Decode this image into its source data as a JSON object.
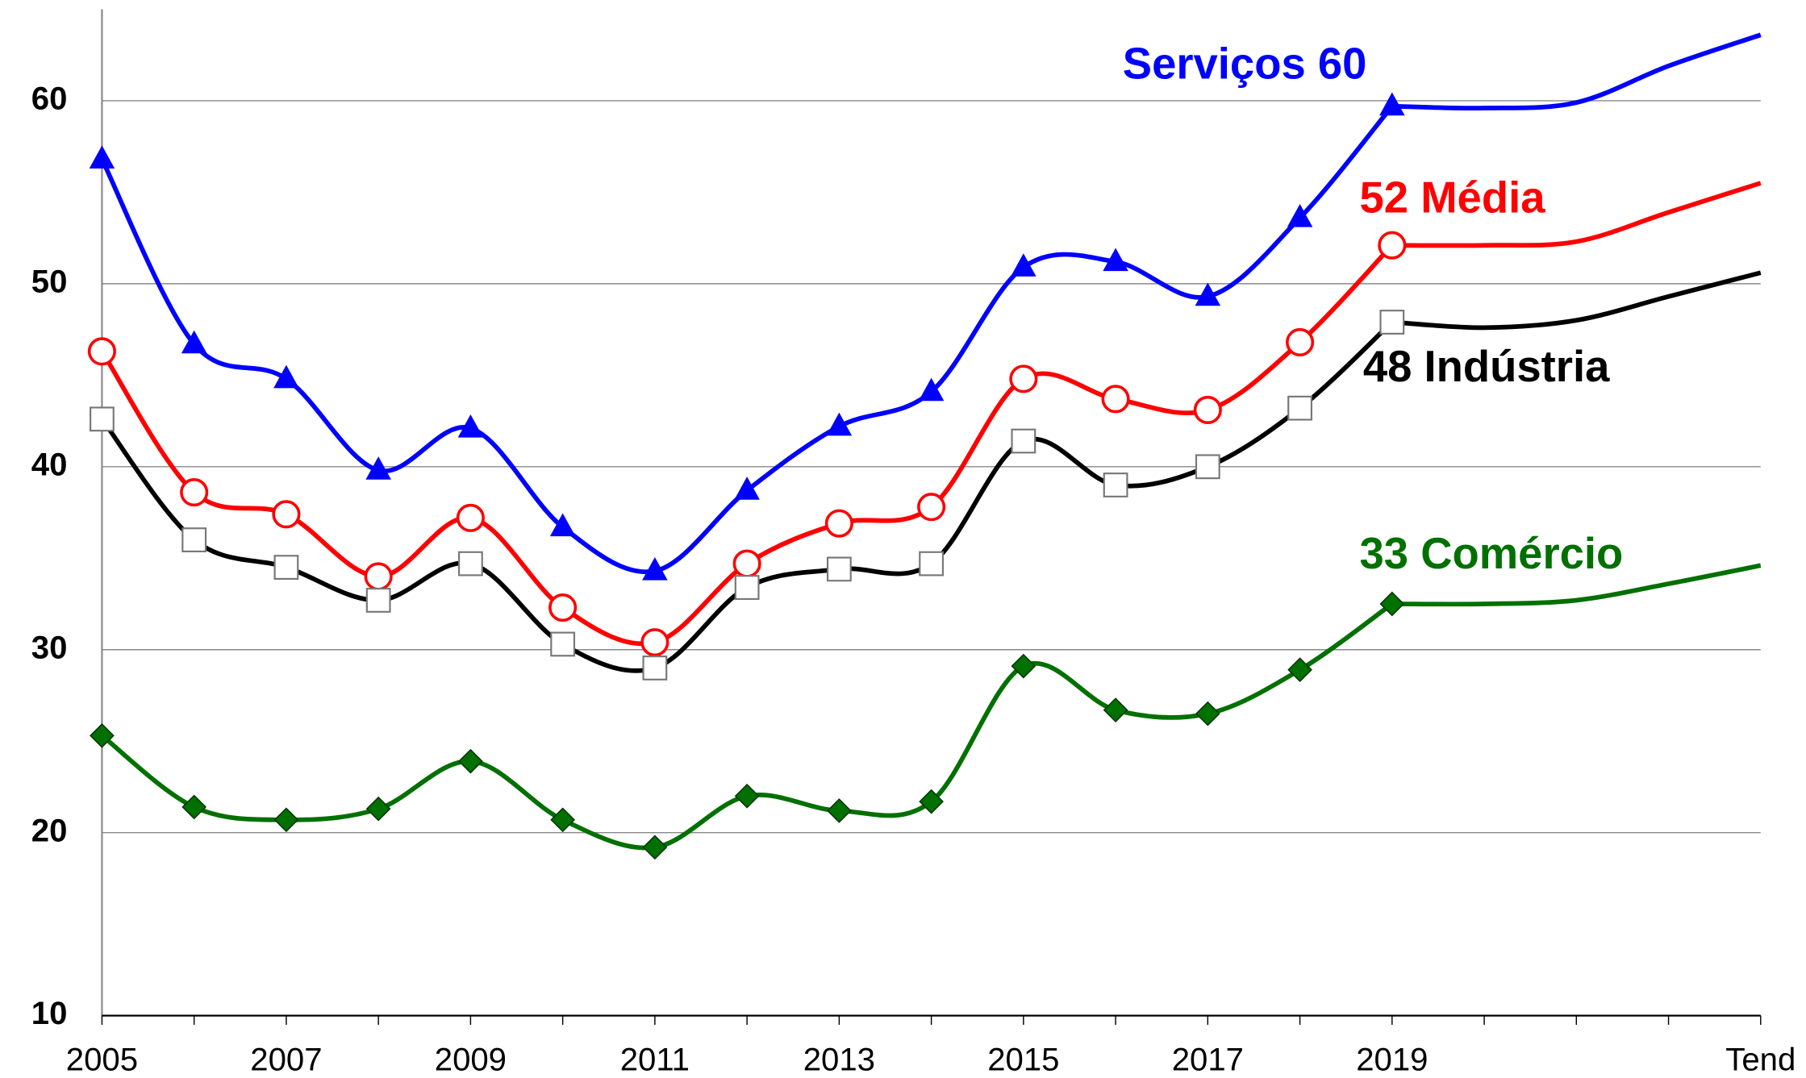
{
  "chart_data": {
    "type": "line",
    "categories": [
      "2005",
      null,
      "2007",
      null,
      "2009",
      null,
      "2011",
      null,
      "2013",
      null,
      "2015",
      null,
      "2017",
      null,
      "2019",
      null,
      null,
      null,
      "Tend"
    ],
    "ylim": [
      10,
      65
    ],
    "yticks": [
      10,
      20,
      30,
      40,
      50,
      60
    ],
    "grid": true,
    "smooth": true,
    "series": [
      {
        "name": "Serviços",
        "color": "#0000ff",
        "marker": "triangle",
        "values": [
          56.8,
          46.7,
          44.8,
          39.8,
          42.1,
          36.7,
          34.3,
          38.7,
          42.2,
          44.1,
          50.9,
          51.2,
          49.3,
          53.6,
          59.7,
          null,
          null,
          null,
          null
        ]
      },
      {
        "name": "Média",
        "color": "#ff0000",
        "marker": "circle",
        "values": [
          46.3,
          38.6,
          37.4,
          34.0,
          37.2,
          32.3,
          30.4,
          34.7,
          36.9,
          37.8,
          44.8,
          43.7,
          43.1,
          46.8,
          52.1,
          null,
          null,
          null,
          null
        ]
      },
      {
        "name": "Indústria",
        "color": "#000000",
        "marker": "square",
        "values": [
          42.6,
          36.0,
          34.5,
          32.7,
          34.7,
          30.3,
          29.0,
          33.4,
          34.4,
          34.7,
          41.4,
          39.0,
          40.0,
          43.2,
          47.9,
          null,
          null,
          null,
          null
        ]
      },
      {
        "name": "Comércio",
        "color": "#007000",
        "marker": "diamond",
        "values": [
          25.3,
          21.4,
          20.7,
          21.3,
          23.9,
          20.7,
          19.2,
          22.0,
          21.2,
          21.7,
          29.1,
          26.7,
          26.5,
          28.9,
          32.5,
          null,
          null,
          null,
          null
        ]
      },
      {
        "color": "#0000ff",
        "marker": "none",
        "continues": 0,
        "values": [
          null,
          null,
          null,
          null,
          null,
          null,
          null,
          null,
          null,
          null,
          null,
          null,
          null,
          null,
          null,
          59.6,
          59.9,
          61.9,
          63.6
        ]
      },
      {
        "color": "#ff0000",
        "marker": "none",
        "continues": 1,
        "values": [
          null,
          null,
          null,
          null,
          null,
          null,
          null,
          null,
          null,
          null,
          null,
          null,
          null,
          null,
          null,
          52.1,
          52.3,
          53.9,
          55.5
        ]
      },
      {
        "color": "#000000",
        "marker": "none",
        "continues": 2,
        "values": [
          null,
          null,
          null,
          null,
          null,
          null,
          null,
          null,
          null,
          null,
          null,
          null,
          null,
          null,
          null,
          47.6,
          48.0,
          49.3,
          50.6
        ]
      },
      {
        "color": "#007000",
        "marker": "none",
        "continues": 3,
        "values": [
          null,
          null,
          null,
          null,
          null,
          null,
          null,
          null,
          null,
          null,
          null,
          null,
          null,
          null,
          null,
          32.5,
          32.7,
          33.6,
          34.6
        ]
      }
    ],
    "annotations": [
      {
        "text": "Serviços  60",
        "color": "#0000ff"
      },
      {
        "text": "52  Média",
        "color": "#ff0000"
      },
      {
        "text": "48  Indústria",
        "color": "#000000"
      },
      {
        "text": "33 Comércio",
        "color": "#007000"
      }
    ]
  }
}
